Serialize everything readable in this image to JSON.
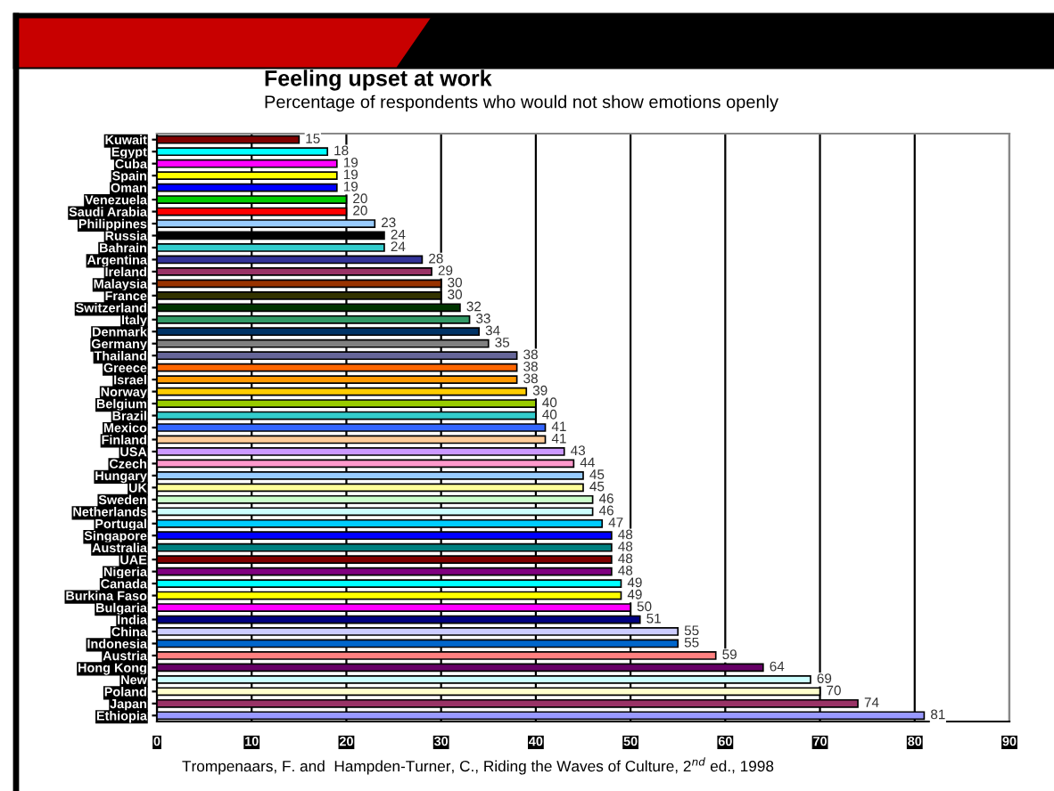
{
  "chart_data": {
    "type": "bar",
    "orientation": "horizontal",
    "title": "Feeling upset at work",
    "subtitle": "Percentage of respondents who would not show emotions openly",
    "categories": [
      "Kuwait",
      "Egypt",
      "Cuba",
      "Spain",
      "Oman",
      "Venezuela",
      "Saudi Arabia",
      "Philippines",
      "Russia",
      "Bahrain",
      "Argentina",
      "Ireland",
      "Malaysia",
      "France",
      "Switzerland",
      "Italy",
      "Denmark",
      "Germany",
      "Thailand",
      "Greece",
      "Israel",
      "Norway",
      "Belgium",
      "Brazil",
      "Mexico",
      "Finland",
      "USA",
      "Czech",
      "Hungary",
      "UK",
      "Sweden",
      "Netherlands",
      "Portugal",
      "Singapore",
      "Australia",
      "UAE",
      "Nigeria",
      "Canada",
      "Burkina Faso",
      "Bulgaria",
      "India",
      "China",
      "Indonesia",
      "Austria",
      "Hong Kong",
      "New",
      "Poland",
      "Japan",
      "Ethiopia"
    ],
    "values": [
      15,
      18,
      19,
      19,
      19,
      20,
      20,
      23,
      24,
      24,
      28,
      29,
      30,
      30,
      32,
      33,
      34,
      35,
      38,
      38,
      38,
      39,
      40,
      40,
      41,
      41,
      43,
      44,
      45,
      45,
      46,
      46,
      47,
      48,
      48,
      48,
      48,
      49,
      49,
      50,
      51,
      55,
      55,
      59,
      64,
      69,
      70,
      74,
      81
    ],
    "colors": [
      "#800000",
      "#00ffff",
      "#ff00ff",
      "#ffff00",
      "#0000ff",
      "#00cc00",
      "#ff0000",
      "#99ccff",
      "#000000",
      "#33cccc",
      "#333399",
      "#993366",
      "#993300",
      "#333300",
      "#003300",
      "#339966",
      "#003366",
      "#808080",
      "#666699",
      "#ff6600",
      "#ff9900",
      "#ffcc00",
      "#99cc00",
      "#33cccc",
      "#3366ff",
      "#ffcc99",
      "#cc99ff",
      "#ff99cc",
      "#99ccff",
      "#ffff99",
      "#ccffcc",
      "#ccffff",
      "#00ccff",
      "#0000ff",
      "#008080",
      "#800000",
      "#800080",
      "#00ffff",
      "#ffff00",
      "#ff00ff",
      "#000080",
      "#ccccff",
      "#0066cc",
      "#ff8080",
      "#660066",
      "#ccffff",
      "#ffffcc",
      "#993366",
      "#9999ff"
    ],
    "xlim": [
      0,
      90
    ],
    "xticks": [
      0,
      10,
      20,
      30,
      40,
      50,
      60,
      70,
      80,
      90
    ],
    "grid": "x",
    "data_labels": true,
    "annotations": [
      "Trompenaars, F. and  Hampden-Turner, C., Riding the Waves of Culture, 2$^{nd}$ ed., 1998"
    ]
  }
}
